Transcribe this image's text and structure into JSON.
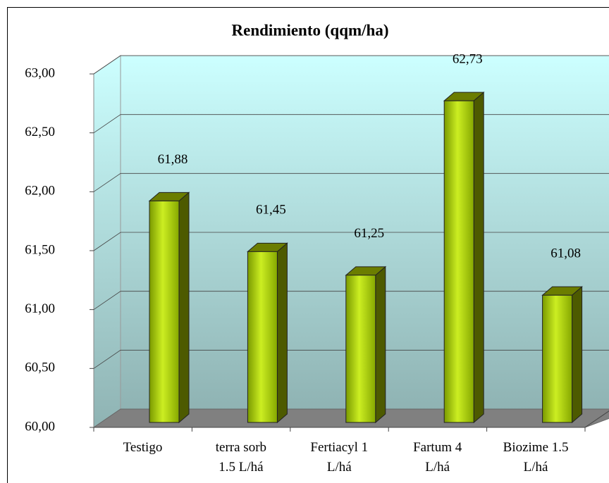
{
  "chart_data": {
    "type": "bar3d",
    "title": "Rendimiento (qqm/ha)",
    "categories": [
      "Testigo",
      "terra sorb\n1.5 L/há",
      "Fertiacyl 1\nL/há",
      "Fartum 4\nL/há",
      "Biozime 1.5\nL/há"
    ],
    "values": [
      61.88,
      61.45,
      61.25,
      62.73,
      61.08
    ],
    "value_labels": [
      "61,88",
      "61,45",
      "61,25",
      "62,73",
      "61,08"
    ],
    "color": "#9acd00",
    "ylim": [
      60,
      63
    ],
    "yticks": [
      {
        "value": 60,
        "label": "60,00"
      },
      {
        "value": 60.5,
        "label": "60,50"
      },
      {
        "value": 61,
        "label": "61,00"
      },
      {
        "value": 61.5,
        "label": "61,50"
      },
      {
        "value": 62,
        "label": "62,00"
      },
      {
        "value": 62.5,
        "label": "62,50"
      },
      {
        "value": 63,
        "label": "63,00"
      }
    ],
    "grid": true
  }
}
